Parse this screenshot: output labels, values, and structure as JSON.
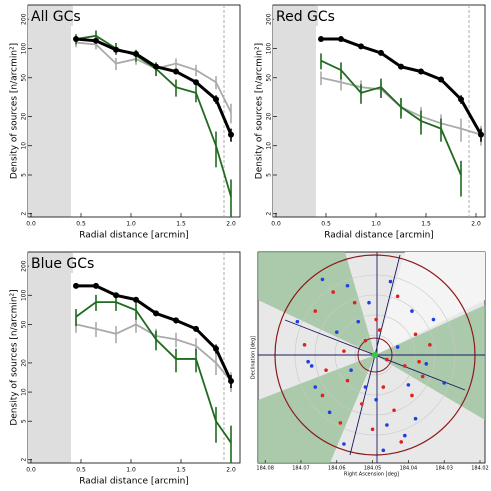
{
  "chart_data": [
    {
      "type": "line",
      "title": "All GCs",
      "xlabel": "Radial distance [arcmin]",
      "ylabel": "Density of sources [n/arcmin²]",
      "log_y": true,
      "xlim": [
        -0.03,
        2.09
      ],
      "ylim": [
        1.85,
        280
      ],
      "xticks": [
        {
          "value": 0,
          "label": "0.0"
        },
        {
          "value": 0.5,
          "label": "0.5"
        },
        {
          "value": 1,
          "label": "1.0"
        },
        {
          "value": 1.5,
          "label": "1.5"
        },
        {
          "value": 2,
          "label": "2.0"
        }
      ],
      "yticks": [
        2,
        5,
        10,
        20,
        50,
        100,
        200
      ],
      "shaded_xrange": [
        -0.03,
        0.4
      ],
      "vline_x": 1.93,
      "x": [
        0.45,
        0.65,
        0.85,
        1.05,
        1.25,
        1.45,
        1.65,
        1.85,
        2.0
      ],
      "series": [
        {
          "color": "#aaaaaa",
          "values": [
            115,
            110,
            70,
            78,
            62,
            70,
            60,
            45,
            22
          ],
          "errors": [
            12,
            12,
            10,
            10,
            9,
            9,
            8,
            7,
            5
          ]
        },
        {
          "color": "#1f6b1f",
          "values": [
            125,
            135,
            100,
            85,
            62,
            40,
            35,
            10,
            3
          ],
          "errors": [
            15,
            18,
            14,
            12,
            10,
            8,
            7,
            4,
            1.5
          ]
        },
        {
          "color": "#000000",
          "values": [
            125,
            120,
            97,
            88,
            65,
            58,
            45,
            30,
            13
          ],
          "errors": [
            6,
            6,
            5,
            5,
            4,
            4,
            3,
            3,
            2
          ]
        }
      ]
    },
    {
      "type": "line",
      "title": "Red GCs",
      "xlabel": "Radial distance [arcmin]",
      "ylabel": "Density of sources [n/arcmin²]",
      "log_y": true,
      "xlim": [
        -0.03,
        2.09
      ],
      "ylim": [
        1.85,
        280
      ],
      "xticks": [
        {
          "value": 0,
          "label": "0.0"
        },
        {
          "value": 0.5,
          "label": "0.5"
        },
        {
          "value": 1,
          "label": "1.0"
        },
        {
          "value": 1.5,
          "label": "1.5"
        },
        {
          "value": 2,
          "label": "2.0"
        }
      ],
      "yticks": [
        2,
        5,
        10,
        20,
        50,
        100,
        200
      ],
      "shaded_xrange": [
        -0.03,
        0.4
      ],
      "vline_x": 1.93,
      "x": [
        0.45,
        0.65,
        0.85,
        1.05,
        1.25,
        1.45,
        1.65,
        1.85,
        2.05
      ],
      "series": [
        {
          "color": "#aaaaaa",
          "values": [
            50,
            45,
            40,
            38,
            25,
            20,
            17,
            15,
            13
          ],
          "errors": [
            8,
            8,
            7,
            7,
            5,
            5,
            4,
            4,
            3
          ]
        },
        {
          "color": "#1f6b1f",
          "values": [
            75,
            60,
            35,
            40,
            25,
            18,
            15,
            5,
            null
          ],
          "errors": [
            14,
            12,
            8,
            9,
            6,
            5,
            4,
            2,
            null
          ]
        },
        {
          "color": "#000000",
          "values": [
            125,
            125,
            105,
            90,
            65,
            58,
            48,
            30,
            13
          ],
          "errors": [
            6,
            6,
            5,
            5,
            4,
            4,
            3,
            3,
            2
          ]
        }
      ]
    },
    {
      "type": "line",
      "title": "Blue GCs",
      "xlabel": "Radial distance [arcmin]",
      "ylabel": "Density of sources [n/arcmin²]",
      "log_y": true,
      "xlim": [
        -0.03,
        2.09
      ],
      "ylim": [
        1.85,
        280
      ],
      "xticks": [
        {
          "value": 0,
          "label": "0.0"
        },
        {
          "value": 0.5,
          "label": "0.5"
        },
        {
          "value": 1,
          "label": "1.0"
        },
        {
          "value": 1.5,
          "label": "1.5"
        },
        {
          "value": 2,
          "label": "2.0"
        }
      ],
      "yticks": [
        2,
        5,
        10,
        20,
        50,
        100,
        200
      ],
      "shaded_xrange": [
        -0.03,
        0.4
      ],
      "vline_x": 1.93,
      "x": [
        0.45,
        0.65,
        0.85,
        1.05,
        1.25,
        1.45,
        1.65,
        1.85,
        2.0
      ],
      "series": [
        {
          "color": "#aaaaaa",
          "values": [
            50,
            45,
            40,
            50,
            38,
            35,
            30,
            20,
            13
          ],
          "errors": [
            9,
            8,
            8,
            9,
            7,
            6,
            6,
            5,
            3
          ]
        },
        {
          "color": "#1f6b1f",
          "values": [
            60,
            85,
            85,
            70,
            35,
            22,
            22,
            5,
            3
          ],
          "errors": [
            12,
            16,
            16,
            14,
            8,
            6,
            6,
            2,
            1.5
          ]
        },
        {
          "color": "#000000",
          "values": [
            125,
            125,
            100,
            90,
            65,
            55,
            45,
            28,
            13
          ],
          "errors": [
            6,
            6,
            5,
            5,
            4,
            4,
            3,
            3,
            2
          ]
        }
      ]
    },
    {
      "type": "scatter",
      "xlabel": "Right Ascension [deg]",
      "ylabel": "Declination [deg]",
      "xlim": [
        184.082,
        184.0186
      ],
      "ylim": [
        5.79,
        5.89
      ],
      "xticks": [
        184.08,
        184.07,
        184.06,
        184.05,
        184.04,
        184.03,
        184.02
      ],
      "series": [
        {
          "color": "#e02020",
          "x": [
            184.066,
            184.061,
            184.055,
            184.049,
            184.043,
            184.038,
            184.034,
            184.058,
            184.052,
            184.046,
            184.041,
            184.063,
            184.057,
            184.047,
            184.036,
            184.069,
            184.053,
            184.044,
            184.039,
            184.059,
            184.05,
            184.042,
            184.064,
            184.048,
            184.037
          ],
          "y": [
            5.862,
            5.871,
            5.866,
            5.858,
            5.869,
            5.851,
            5.846,
            5.843,
            5.848,
            5.839,
            5.836,
            5.834,
            5.829,
            5.826,
            5.831,
            5.846,
            5.818,
            5.815,
            5.822,
            5.809,
            5.806,
            5.8,
            5.822,
            5.853,
            5.838
          ]
        },
        {
          "color": "#1f3fe0",
          "x": [
            184.071,
            184.064,
            184.057,
            184.051,
            184.045,
            184.039,
            184.033,
            184.068,
            184.06,
            184.054,
            184.043,
            184.035,
            184.066,
            184.056,
            184.049,
            184.04,
            184.03,
            184.062,
            184.052,
            184.046,
            184.038,
            184.058,
            184.047,
            184.041,
            184.067
          ],
          "y": [
            5.857,
            5.877,
            5.874,
            5.866,
            5.876,
            5.862,
            5.858,
            5.838,
            5.852,
            5.857,
            5.845,
            5.837,
            5.826,
            5.834,
            5.82,
            5.827,
            5.828,
            5.814,
            5.826,
            5.808,
            5.811,
            5.799,
            5.796,
            5.803,
            5.836
          ]
        }
      ]
    }
  ]
}
